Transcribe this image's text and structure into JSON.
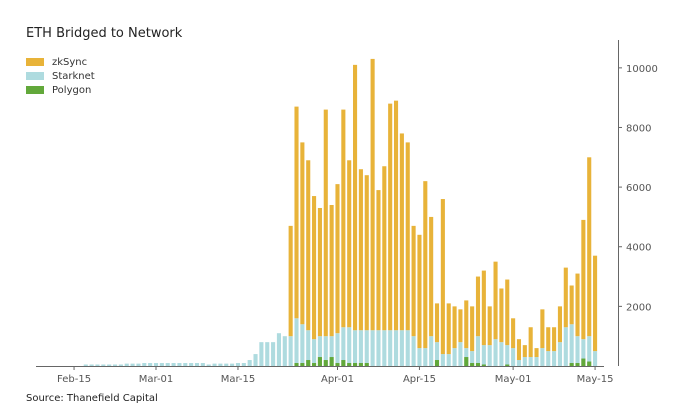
{
  "title": "ETH Bridged to Network",
  "source": "Source: Thanefield Capital",
  "chart_data": {
    "type": "bar",
    "stacked": true,
    "ylim": [
      0,
      10800
    ],
    "yticks": [
      2000,
      4000,
      6000,
      8000,
      10000
    ],
    "y_axis_side": "right",
    "x_start": "2023-02-09",
    "xticks": [
      {
        "label": "Feb-15",
        "date": "2023-02-15"
      },
      {
        "label": "Mar-01",
        "date": "2023-03-01"
      },
      {
        "label": "Mar-15",
        "date": "2023-03-15"
      },
      {
        "label": "Apr-01",
        "date": "2023-04-01"
      },
      {
        "label": "Apr-15",
        "date": "2023-04-15"
      },
      {
        "label": "May-01",
        "date": "2023-05-01"
      },
      {
        "label": "May-15",
        "date": "2023-05-15"
      }
    ],
    "legend": "top-left",
    "series": [
      {
        "name": "zkSync",
        "color": "#e8b339",
        "values": [
          0,
          0,
          0,
          0,
          0,
          0,
          0,
          0,
          0,
          0,
          0,
          0,
          0,
          0,
          0,
          0,
          0,
          0,
          0,
          0,
          0,
          0,
          0,
          0,
          0,
          0,
          0,
          0,
          0,
          0,
          0,
          0,
          0,
          0,
          0,
          0,
          0,
          0,
          0,
          0,
          0,
          0,
          0,
          3700,
          7100,
          6100,
          5700,
          4800,
          4300,
          7600,
          4400,
          5000,
          7300,
          5600,
          8900,
          5400,
          5200,
          9100,
          4700,
          5500,
          7600,
          7700,
          6600,
          6300,
          3700,
          3800,
          5600,
          4000,
          1300,
          5200,
          1700,
          1400,
          1100,
          1600,
          1500,
          2000,
          2500,
          1300,
          2600,
          1800,
          2200,
          1000,
          700,
          400,
          1000,
          300,
          1300,
          800,
          800,
          1200,
          2000,
          1300,
          2100,
          4000,
          6000,
          3200
        ],
        "_note_placeholder": ""
      },
      {
        "name": "Starknet",
        "color": "#aedbdf",
        "values": [
          0,
          0,
          0,
          0,
          0,
          0,
          0,
          0,
          50,
          50,
          50,
          50,
          50,
          50,
          50,
          80,
          80,
          80,
          100,
          100,
          100,
          100,
          100,
          100,
          100,
          100,
          100,
          100,
          100,
          50,
          80,
          80,
          80,
          80,
          100,
          100,
          200,
          400,
          800,
          800,
          800,
          1100,
          1000,
          1000,
          1600,
          1400,
          1200,
          900,
          1000,
          1000,
          1000,
          1100,
          1300,
          1300,
          1200,
          1200,
          1200,
          1200,
          1200,
          1200,
          1200,
          1200,
          1200,
          1200,
          1000,
          600,
          600,
          1000,
          800,
          400,
          400,
          600,
          800,
          600,
          500,
          1000,
          700,
          700,
          900,
          800,
          700,
          600,
          200,
          300,
          300,
          300,
          600,
          500,
          500,
          800,
          1300,
          1400,
          1000,
          900,
          1000,
          500
        ]
      },
      {
        "name": "Polygon",
        "color": "#62a83a",
        "values": [
          0,
          0,
          0,
          0,
          0,
          0,
          0,
          0,
          0,
          0,
          0,
          0,
          0,
          0,
          0,
          0,
          0,
          0,
          0,
          0,
          0,
          0,
          0,
          0,
          0,
          0,
          0,
          0,
          0,
          0,
          0,
          0,
          0,
          0,
          0,
          0,
          0,
          0,
          0,
          0,
          0,
          0,
          0,
          0,
          100,
          100,
          200,
          100,
          300,
          200,
          300,
          100,
          200,
          100,
          100,
          100,
          100,
          0,
          0,
          0,
          0,
          0,
          0,
          0,
          0,
          0,
          0,
          0,
          200,
          0,
          0,
          0,
          0,
          300,
          100,
          100,
          50,
          0,
          0,
          0,
          50,
          0,
          0,
          0,
          0,
          0,
          0,
          0,
          0,
          0,
          0,
          100,
          100,
          250,
          150
        ]
      }
    ]
  }
}
